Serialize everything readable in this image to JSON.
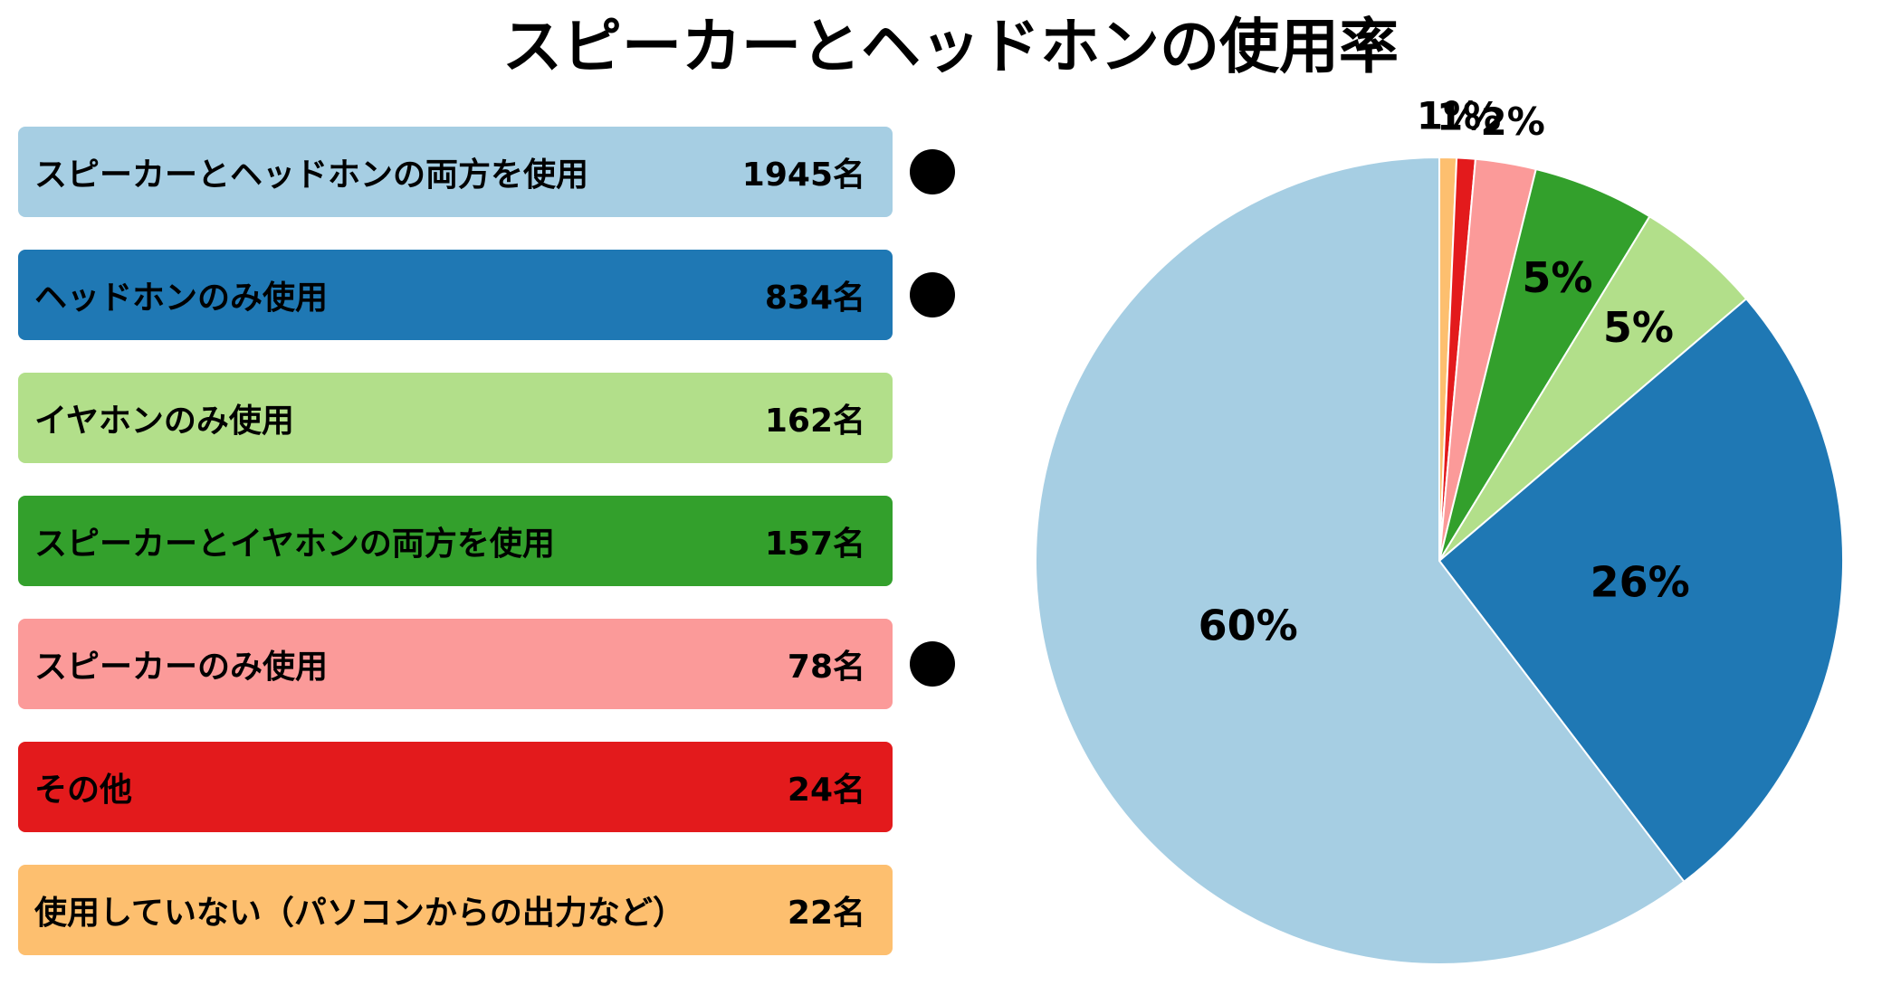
{
  "chart_data": {
    "type": "pie",
    "title": "スピーカーとヘッドホンの使用率",
    "categories": [
      "使用していない（パソコンからの出力など）",
      "その他",
      "スピーカーのみ使用",
      "スピーカーとイヤホンの両方を使用",
      "イヤホンのみ使用",
      "ヘッドホンのみ使用",
      "スピーカーとヘッドホンの両方を使用"
    ],
    "values": [
      22,
      24,
      78,
      157,
      162,
      834,
      1945
    ],
    "percent_labels": [
      "1%",
      "1%",
      "2%",
      "5%",
      "5%",
      "26%",
      "60%"
    ],
    "colors": [
      "#fdbf6f",
      "#e31a1c",
      "#fb9a99",
      "#33a02c",
      "#b2df8a",
      "#1f78b4",
      "#a6cee3"
    ],
    "legend": {
      "placement": "left",
      "items": [
        {
          "label": "スピーカーとヘッドホンの両方を使用",
          "count": "1945名",
          "color": "#a6cee3",
          "text_color": "#000000",
          "marked": true
        },
        {
          "label": "ヘッドホンのみ使用",
          "count": "834名",
          "color": "#1f78b4",
          "text_color": "#000000",
          "marked": true
        },
        {
          "label": "イヤホンのみ使用",
          "count": "162名",
          "color": "#b2df8a",
          "text_color": "#000000",
          "marked": false
        },
        {
          "label": "スピーカーとイヤホンの両方を使用",
          "count": "157名",
          "color": "#33a02c",
          "text_color": "#000000",
          "marked": false
        },
        {
          "label": "スピーカーのみ使用",
          "count": "78名",
          "color": "#fb9a99",
          "text_color": "#000000",
          "marked": true
        },
        {
          "label": "その他",
          "count": "24名",
          "color": "#e31a1c",
          "text_color": "#000000",
          "marked": false
        },
        {
          "label": "使用していない（パソコンからの出力など）",
          "count": "22名",
          "color": "#fdbf6f",
          "text_color": "#000000",
          "marked": false
        }
      ]
    }
  }
}
